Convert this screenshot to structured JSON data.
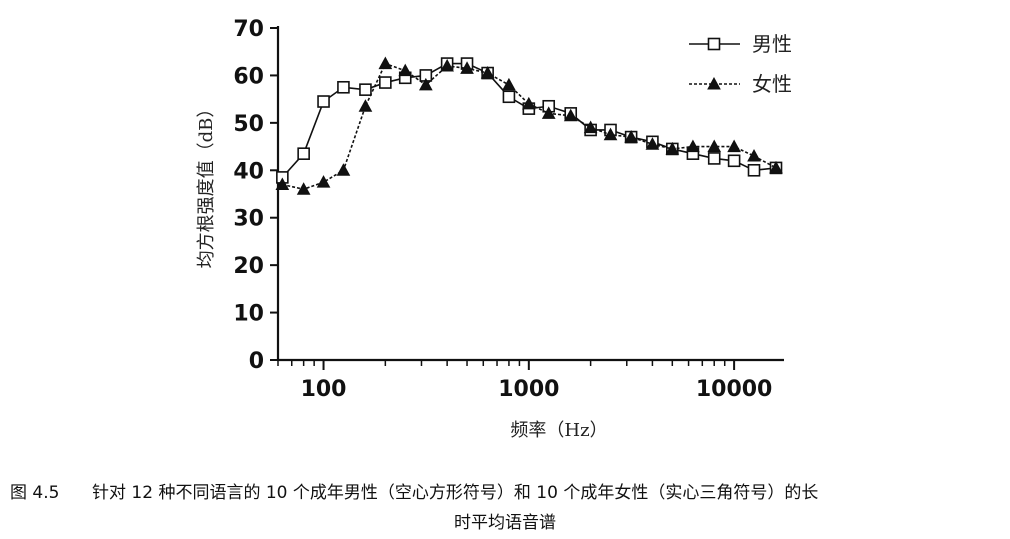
{
  "chart_data": {
    "type": "line",
    "xscale": "log",
    "xlabel": "频率（Hz）",
    "ylabel": "均方根强度值（dB）",
    "xlim": [
      60,
      17500
    ],
    "ylim": [
      0,
      70
    ],
    "xticks": [
      100,
      1000,
      10000
    ],
    "xtick_labels": [
      "100",
      "1000",
      "10000"
    ],
    "yticks": [
      0,
      10,
      20,
      30,
      40,
      50,
      60,
      70
    ],
    "ytick_labels": [
      "0",
      "10",
      "20",
      "30",
      "40",
      "50",
      "60",
      "70"
    ],
    "grid": false,
    "legend_position": "top-right",
    "series": [
      {
        "name": "男性",
        "marker": "open-square",
        "x": [
          63,
          80,
          100,
          125,
          160,
          200,
          250,
          315,
          400,
          500,
          630,
          800,
          1000,
          1250,
          1600,
          2000,
          2500,
          3150,
          4000,
          5000,
          6300,
          8000,
          10000,
          12500,
          16000
        ],
        "y": [
          38.5,
          43.5,
          54.5,
          57.5,
          57,
          58.5,
          59.5,
          60,
          62.5,
          62.5,
          60.5,
          55.5,
          53,
          53.5,
          52,
          48.5,
          48.5,
          47,
          46,
          44.5,
          43.5,
          42.5,
          42,
          40,
          40.5
        ]
      },
      {
        "name": "女性",
        "marker": "filled-triangle",
        "x": [
          63,
          80,
          100,
          125,
          160,
          200,
          250,
          315,
          400,
          500,
          630,
          800,
          1000,
          1250,
          1600,
          2000,
          2500,
          3150,
          4000,
          5000,
          6300,
          8000,
          10000,
          12500,
          16000
        ],
        "y": [
          37,
          36,
          37.5,
          40,
          53.5,
          62.5,
          61,
          58,
          62,
          61.5,
          60.5,
          58,
          54,
          52,
          51.5,
          49,
          47.5,
          47,
          45.5,
          44.5,
          45,
          45,
          45,
          43,
          40.5
        ]
      }
    ]
  },
  "caption": {
    "figure_label": "图 4.5",
    "line1": "针对 12 种不同语言的 10 个成年男性（空心方形符号）和 10 个成年女性（实心三角符号）的长",
    "line2": "时平均语音谱"
  }
}
